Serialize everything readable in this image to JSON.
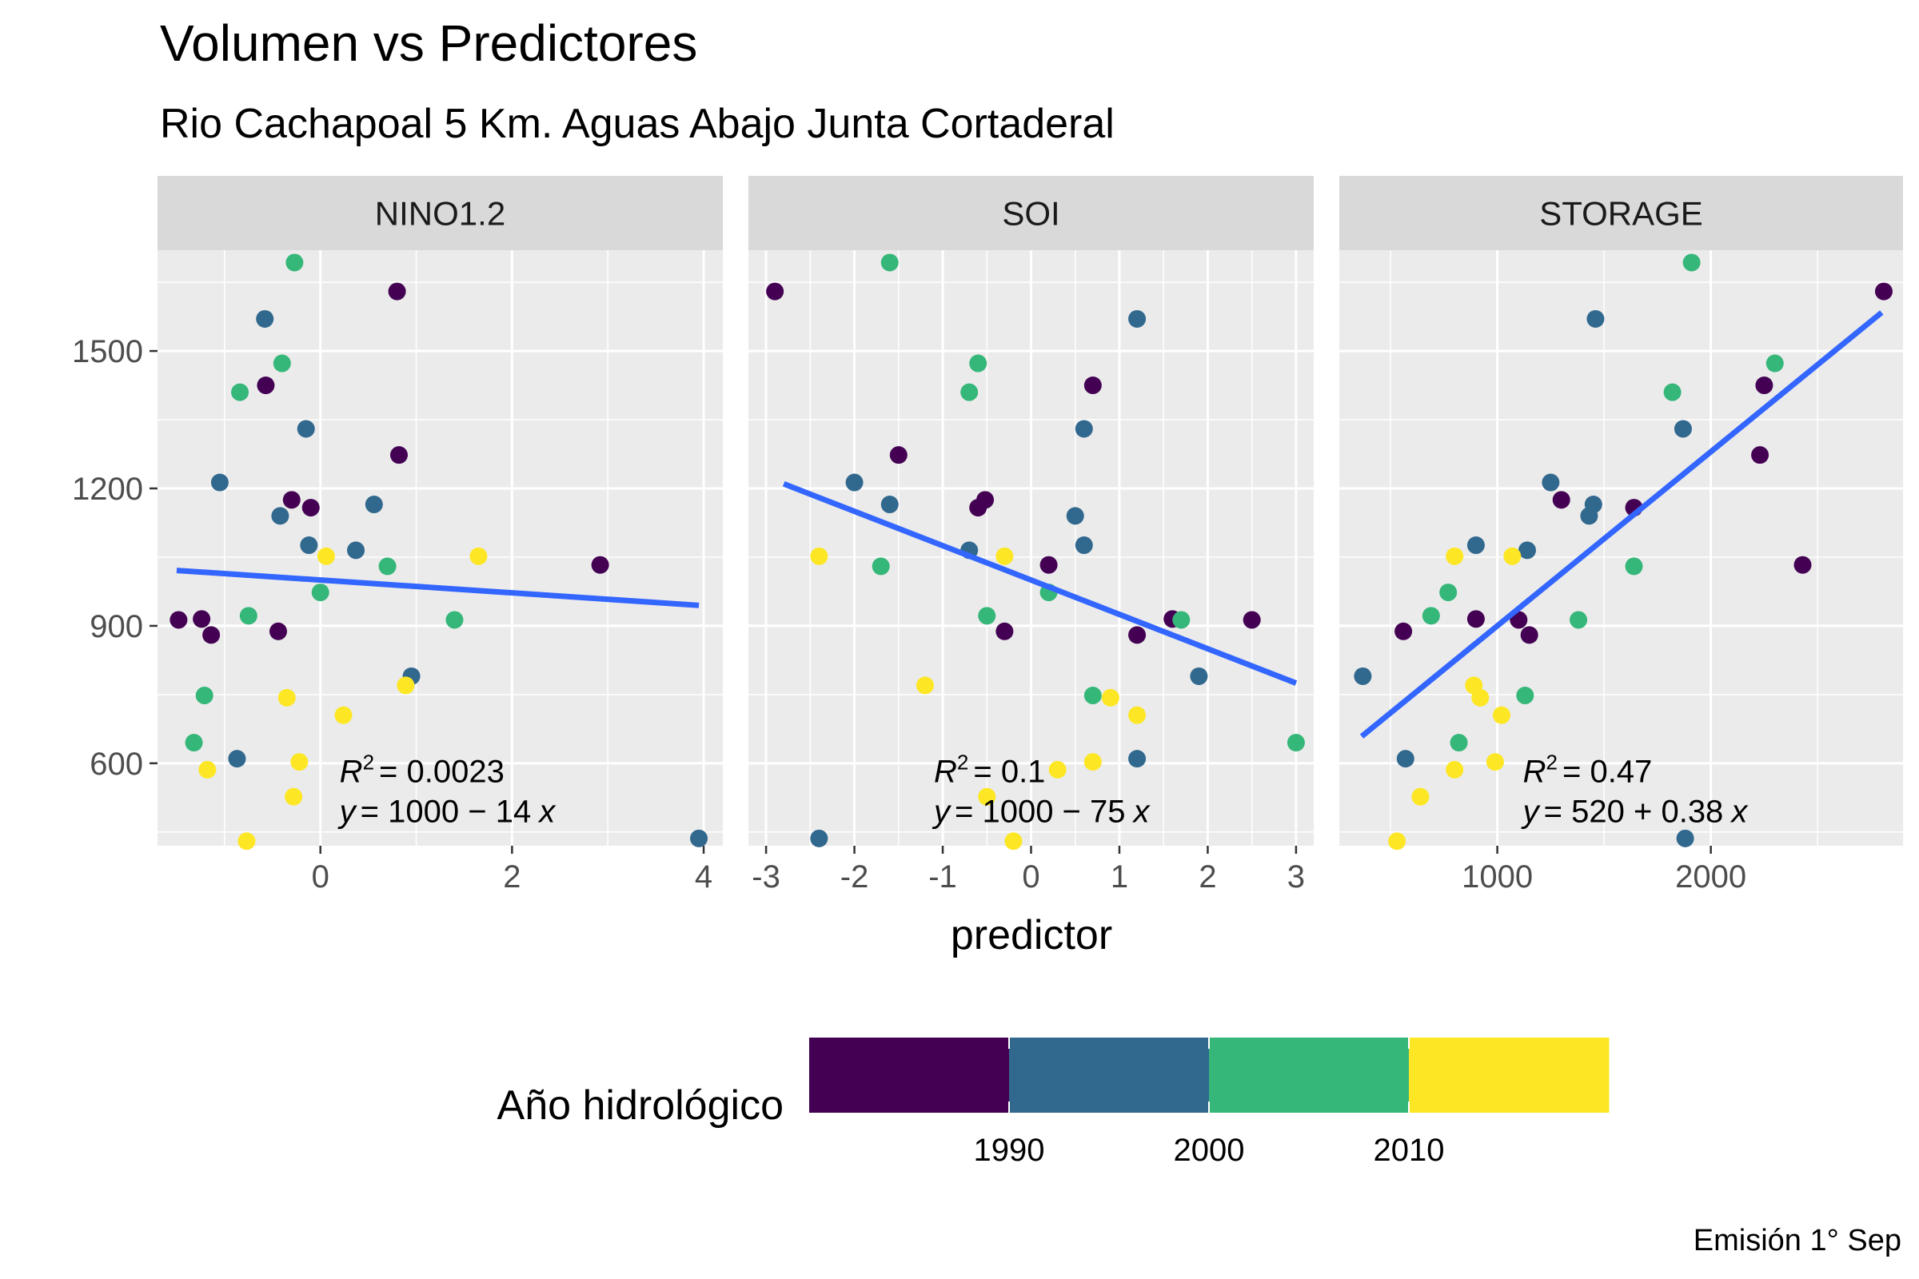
{
  "chart_data": {
    "type": "scatter",
    "title": "Volumen vs Predictores",
    "subtitle": "Rio Cachapoal 5 Km. Aguas Abajo Junta Cortaderal",
    "xlabel": "predictor",
    "ylabel": "",
    "caption": "Emisión 1° Sep",
    "ylim": [
      420,
      1720
    ],
    "yticks": [
      "600",
      "900",
      "1200",
      "1500"
    ],
    "legend": {
      "title": "Año hidrológico",
      "position": "bottom",
      "colors": [
        "#440154",
        "#31688e",
        "#35b779",
        "#fde725"
      ],
      "labels": [
        "1990",
        "2000",
        "2010"
      ]
    },
    "fit_line_color": "#3366ff",
    "panels": [
      {
        "name": "NINO1.2",
        "xlim": [
          -1.7,
          4.2
        ],
        "xticks": [
          "0",
          "2",
          "4"
        ],
        "fit": {
          "x0": -1.5,
          "x1": 3.95,
          "intercept": 1000,
          "slope": -14
        },
        "r2_value": "= 0.0023",
        "eq_value": "= 1000 − 14",
        "label_anchor": [
          0.2,
          590
        ],
        "points": [
          {
            "x": -1.48,
            "y": 913,
            "c": 0
          },
          {
            "x": -1.24,
            "y": 915,
            "c": 0
          },
          {
            "x": -1.14,
            "y": 880,
            "c": 0
          },
          {
            "x": -0.57,
            "y": 1425,
            "c": 0
          },
          {
            "x": -0.3,
            "y": 1175,
            "c": 0
          },
          {
            "x": -0.1,
            "y": 1158,
            "c": 0
          },
          {
            "x": -0.44,
            "y": 888,
            "c": 0
          },
          {
            "x": 0.8,
            "y": 1630,
            "c": 0
          },
          {
            "x": 0.82,
            "y": 1273,
            "c": 0
          },
          {
            "x": 2.92,
            "y": 1033,
            "c": 0
          },
          {
            "x": -1.05,
            "y": 1213,
            "c": 1
          },
          {
            "x": -0.58,
            "y": 1570,
            "c": 1
          },
          {
            "x": -0.15,
            "y": 1330,
            "c": 1
          },
          {
            "x": -0.42,
            "y": 1140,
            "c": 1
          },
          {
            "x": -0.12,
            "y": 1076,
            "c": 1
          },
          {
            "x": 0.37,
            "y": 1065,
            "c": 1
          },
          {
            "x": 0.56,
            "y": 1165,
            "c": 1
          },
          {
            "x": 0.95,
            "y": 790,
            "c": 1
          },
          {
            "x": -0.87,
            "y": 610,
            "c": 1
          },
          {
            "x": 3.95,
            "y": 436,
            "c": 1
          },
          {
            "x": -0.27,
            "y": 1693,
            "c": 2
          },
          {
            "x": -0.4,
            "y": 1473,
            "c": 2
          },
          {
            "x": -0.84,
            "y": 1410,
            "c": 2
          },
          {
            "x": -0.75,
            "y": 922,
            "c": 2
          },
          {
            "x": -1.21,
            "y": 748,
            "c": 2
          },
          {
            "x": -1.32,
            "y": 645,
            "c": 2
          },
          {
            "x": 0.0,
            "y": 973,
            "c": 2
          },
          {
            "x": 0.7,
            "y": 1030,
            "c": 2
          },
          {
            "x": 1.4,
            "y": 913,
            "c": 2
          },
          {
            "x": 0.06,
            "y": 1052,
            "c": 3
          },
          {
            "x": 1.65,
            "y": 1052,
            "c": 3
          },
          {
            "x": -0.35,
            "y": 743,
            "c": 3
          },
          {
            "x": 0.24,
            "y": 705,
            "c": 3
          },
          {
            "x": 0.89,
            "y": 770,
            "c": 3
          },
          {
            "x": -1.18,
            "y": 586,
            "c": 3
          },
          {
            "x": -0.22,
            "y": 603,
            "c": 3
          },
          {
            "x": -0.28,
            "y": 527,
            "c": 3
          },
          {
            "x": -0.77,
            "y": 430,
            "c": 3
          }
        ]
      },
      {
        "name": "SOI",
        "xlim": [
          -3.2,
          3.2
        ],
        "xticks": [
          "-3",
          "-2",
          "-1",
          "0",
          "1",
          "2",
          "3"
        ],
        "fit": {
          "x0": -2.8,
          "x1": 3.0,
          "intercept": 1000,
          "slope": -75
        },
        "r2_value": "= 0.1",
        "eq_value": "= 1000 − 75",
        "label_anchor": [
          -1.1,
          590
        ],
        "points": [
          {
            "x": -2.9,
            "y": 1630,
            "c": 0
          },
          {
            "x": -1.5,
            "y": 1273,
            "c": 0
          },
          {
            "x": -0.6,
            "y": 1158,
            "c": 0
          },
          {
            "x": -0.52,
            "y": 1175,
            "c": 0
          },
          {
            "x": -0.3,
            "y": 888,
            "c": 0
          },
          {
            "x": 0.2,
            "y": 1033,
            "c": 0
          },
          {
            "x": 0.7,
            "y": 1425,
            "c": 0
          },
          {
            "x": 1.2,
            "y": 880,
            "c": 0
          },
          {
            "x": 1.6,
            "y": 915,
            "c": 0
          },
          {
            "x": 2.5,
            "y": 913,
            "c": 0
          },
          {
            "x": -2.0,
            "y": 1213,
            "c": 1
          },
          {
            "x": -1.6,
            "y": 1165,
            "c": 1
          },
          {
            "x": -0.7,
            "y": 1065,
            "c": 1
          },
          {
            "x": 0.5,
            "y": 1140,
            "c": 1
          },
          {
            "x": 0.6,
            "y": 1330,
            "c": 1
          },
          {
            "x": 0.6,
            "y": 1076,
            "c": 1
          },
          {
            "x": 1.2,
            "y": 1570,
            "c": 1
          },
          {
            "x": 1.9,
            "y": 790,
            "c": 1
          },
          {
            "x": 1.2,
            "y": 610,
            "c": 1
          },
          {
            "x": -2.4,
            "y": 436,
            "c": 1
          },
          {
            "x": -1.6,
            "y": 1693,
            "c": 2
          },
          {
            "x": -0.6,
            "y": 1473,
            "c": 2
          },
          {
            "x": -0.7,
            "y": 1410,
            "c": 2
          },
          {
            "x": -1.7,
            "y": 1030,
            "c": 2
          },
          {
            "x": -0.5,
            "y": 922,
            "c": 2
          },
          {
            "x": 0.2,
            "y": 973,
            "c": 2
          },
          {
            "x": 0.7,
            "y": 748,
            "c": 2
          },
          {
            "x": 1.7,
            "y": 913,
            "c": 2
          },
          {
            "x": 3.0,
            "y": 645,
            "c": 2
          },
          {
            "x": -2.4,
            "y": 1052,
            "c": 3
          },
          {
            "x": -0.3,
            "y": 1052,
            "c": 3
          },
          {
            "x": -1.2,
            "y": 770,
            "c": 3
          },
          {
            "x": 0.9,
            "y": 743,
            "c": 3
          },
          {
            "x": 1.2,
            "y": 705,
            "c": 3
          },
          {
            "x": 0.7,
            "y": 603,
            "c": 3
          },
          {
            "x": 0.3,
            "y": 586,
            "c": 3
          },
          {
            "x": -0.5,
            "y": 527,
            "c": 3
          },
          {
            "x": -0.2,
            "y": 430,
            "c": 3
          }
        ]
      },
      {
        "name": "STORAGE",
        "xlim": [
          260,
          2900
        ],
        "xticks": [
          "1000",
          "2000"
        ],
        "fit": {
          "x0": 365,
          "x1": 2800,
          "intercept": 520,
          "slope": 0.38
        },
        "r2_value": "= 0.47",
        "eq_value": "= 520 + 0.38",
        "label_anchor": [
          1120,
          590
        ],
        "points": [
          {
            "x": 2810,
            "y": 1630,
            "c": 0
          },
          {
            "x": 2250,
            "y": 1425,
            "c": 0
          },
          {
            "x": 2230,
            "y": 1273,
            "c": 0
          },
          {
            "x": 1300,
            "y": 1175,
            "c": 0
          },
          {
            "x": 1640,
            "y": 1158,
            "c": 0
          },
          {
            "x": 2430,
            "y": 1033,
            "c": 0
          },
          {
            "x": 560,
            "y": 888,
            "c": 0
          },
          {
            "x": 900,
            "y": 915,
            "c": 0
          },
          {
            "x": 1100,
            "y": 913,
            "c": 0
          },
          {
            "x": 1150,
            "y": 880,
            "c": 0
          },
          {
            "x": 1460,
            "y": 1570,
            "c": 1
          },
          {
            "x": 1870,
            "y": 1330,
            "c": 1
          },
          {
            "x": 1250,
            "y": 1213,
            "c": 1
          },
          {
            "x": 1450,
            "y": 1165,
            "c": 1
          },
          {
            "x": 1430,
            "y": 1140,
            "c": 1
          },
          {
            "x": 1140,
            "y": 1065,
            "c": 1
          },
          {
            "x": 900,
            "y": 1076,
            "c": 1
          },
          {
            "x": 370,
            "y": 790,
            "c": 1
          },
          {
            "x": 570,
            "y": 610,
            "c": 1
          },
          {
            "x": 1880,
            "y": 436,
            "c": 1
          },
          {
            "x": 1910,
            "y": 1693,
            "c": 2
          },
          {
            "x": 2300,
            "y": 1473,
            "c": 2
          },
          {
            "x": 1820,
            "y": 1410,
            "c": 2
          },
          {
            "x": 1640,
            "y": 1030,
            "c": 2
          },
          {
            "x": 770,
            "y": 973,
            "c": 2
          },
          {
            "x": 690,
            "y": 922,
            "c": 2
          },
          {
            "x": 1380,
            "y": 913,
            "c": 2
          },
          {
            "x": 1130,
            "y": 748,
            "c": 2
          },
          {
            "x": 820,
            "y": 645,
            "c": 2
          },
          {
            "x": 800,
            "y": 1052,
            "c": 3
          },
          {
            "x": 1070,
            "y": 1052,
            "c": 3
          },
          {
            "x": 890,
            "y": 770,
            "c": 3
          },
          {
            "x": 920,
            "y": 743,
            "c": 3
          },
          {
            "x": 1020,
            "y": 705,
            "c": 3
          },
          {
            "x": 990,
            "y": 603,
            "c": 3
          },
          {
            "x": 800,
            "y": 586,
            "c": 3
          },
          {
            "x": 640,
            "y": 527,
            "c": 3
          },
          {
            "x": 530,
            "y": 430,
            "c": 3
          }
        ]
      }
    ]
  }
}
